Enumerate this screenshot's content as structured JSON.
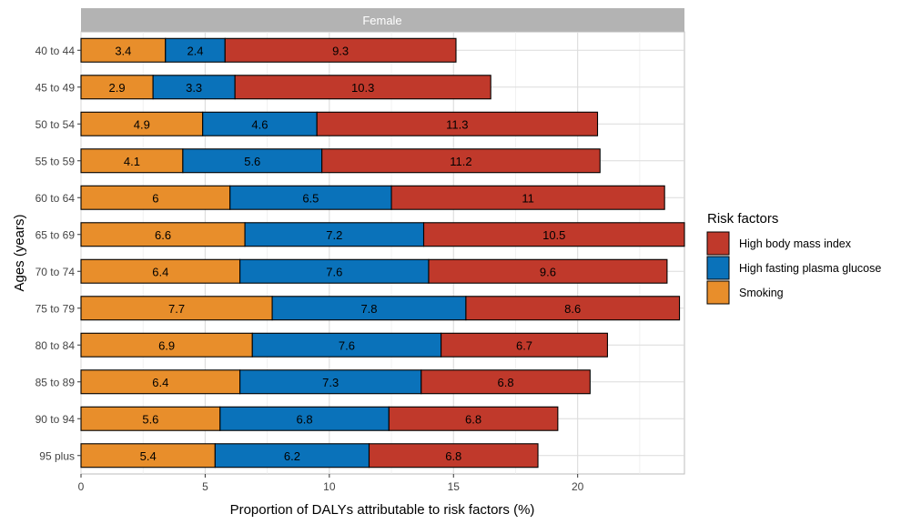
{
  "chart_data": {
    "type": "bar",
    "orientation": "horizontal",
    "stacked": true,
    "panel_title": "Female",
    "xlabel": "Proportion of DALYs attributable to risk factors (%)",
    "ylabel": "Ages (years)",
    "xlim": [
      0,
      24.3
    ],
    "xticks": [
      0,
      5,
      10,
      15,
      20
    ],
    "grid": true,
    "categories": [
      "40 to 44",
      "45 to 49",
      "50 to 54",
      "55 to 59",
      "60 to 64",
      "65 to 69",
      "70 to 74",
      "75 to 79",
      "80 to 84",
      "85 to 89",
      "90 to 94",
      "95 plus"
    ],
    "series": [
      {
        "name": "Smoking",
        "color": "#E88E2B",
        "values": [
          3.4,
          2.9,
          4.9,
          4.1,
          6,
          6.6,
          6.4,
          7.7,
          6.9,
          6.4,
          5.6,
          5.4
        ]
      },
      {
        "name": "High fasting plasma glucose",
        "color": "#0A72BA",
        "values": [
          2.4,
          3.3,
          4.6,
          5.6,
          6.5,
          7.2,
          7.6,
          7.8,
          7.6,
          7.3,
          6.8,
          6.2
        ]
      },
      {
        "name": "High body mass index",
        "color": "#C0392B",
        "values": [
          9.3,
          10.3,
          11.3,
          11.2,
          11,
          10.5,
          9.6,
          8.6,
          6.7,
          6.8,
          6.8,
          6.8
        ]
      }
    ],
    "legend": {
      "title": "Risk factors",
      "position": "right",
      "entries": [
        "High body mass index",
        "High fasting plasma glucose",
        "Smoking"
      ]
    }
  }
}
